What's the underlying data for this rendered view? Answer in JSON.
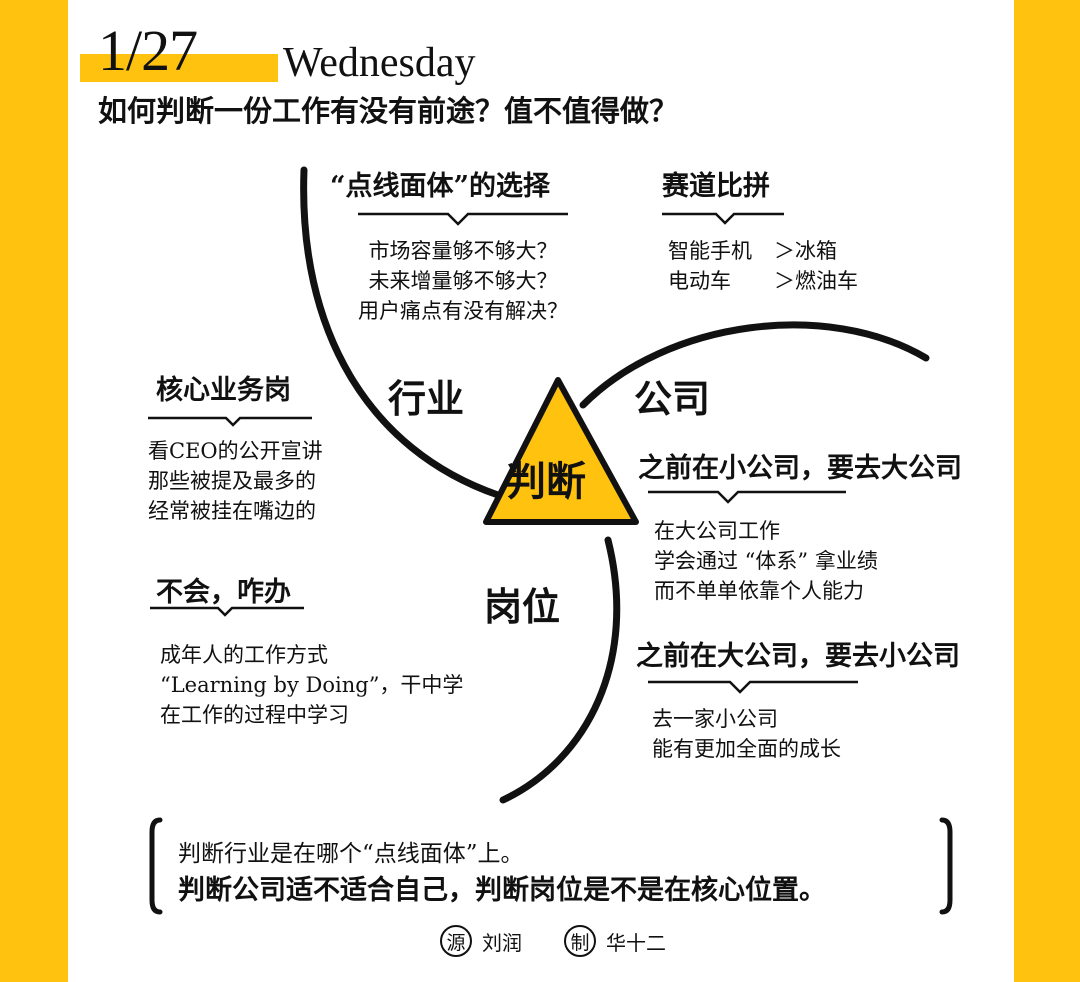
{
  "header": {
    "date": "1/27",
    "weekday": "Wednesday",
    "question": "如何判断一份工作有没有前途？值不值得做？"
  },
  "colors": {
    "accent": "#FFC20E",
    "ink": "#111111",
    "paper": "#FFFFFF"
  },
  "center": {
    "label": "判断"
  },
  "sections": {
    "industry": {
      "label": "行业"
    },
    "company": {
      "label": "公司"
    },
    "position": {
      "label": "岗位"
    }
  },
  "blocks": {
    "dot_line": {
      "title": "“点线面体”的选择",
      "lines": [
        "市场容量够不够大？",
        "未来增量够不够大？",
        "用户痛点有没有解决？"
      ]
    },
    "race": {
      "title": "赛道比拼",
      "rows": [
        {
          "left": "智能手机",
          "right": "＞冰箱"
        },
        {
          "left": "电动车",
          "right": "＞燃油车"
        }
      ]
    },
    "core": {
      "title": "核心业务岗",
      "lines": [
        "看CEO的公开宣讲",
        "那些被提及最多的",
        "经常被挂在嘴边的"
      ]
    },
    "learn": {
      "title": "不会，咋办",
      "lines": [
        "成年人的工作方式",
        "“Learning by Doing”，干中学",
        "在工作的过程中学习"
      ]
    },
    "small_to_big": {
      "title": "之前在小公司，要去大公司",
      "lines": [
        "在大公司工作",
        "学会通过 “体系” 拿业绩",
        "而不单单依靠个人能力"
      ]
    },
    "big_to_small": {
      "title": "之前在大公司，要去小公司",
      "lines": [
        "去一家小公司",
        "能有更加全面的成长"
      ]
    }
  },
  "summary": {
    "line1": "判断行业是在哪个“点线面体”上。",
    "line2": "判断公司适不适合自己，判断岗位是不是在核心位置。"
  },
  "credits": {
    "source_mark": "源",
    "source_name": "刘润",
    "maker_mark": "制",
    "maker_name": "华十二"
  }
}
